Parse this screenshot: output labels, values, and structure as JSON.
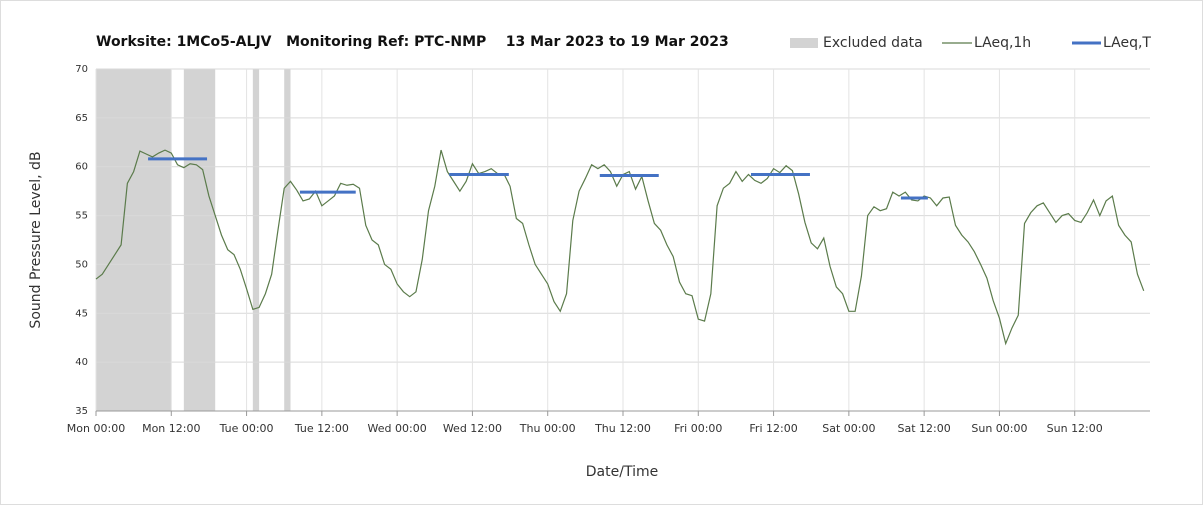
{
  "chart_data": {
    "type": "line",
    "title": "Worksite: 1MCo5-ALJV   Monitoring Ref: PTC-NMP    13 Mar 2023 to 19 Mar 2023",
    "x_label": "Date/Time",
    "y_label": "Sound Pressure Level, dB",
    "xlim": [
      0,
      168
    ],
    "xticks": [
      {
        "value": 0,
        "label": "Mon 00:00"
      },
      {
        "value": 12,
        "label": "Mon 12:00"
      },
      {
        "value": 24,
        "label": "Tue 00:00"
      },
      {
        "value": 36,
        "label": "Tue 12:00"
      },
      {
        "value": 48,
        "label": "Wed 00:00"
      },
      {
        "value": 60,
        "label": "Wed 12:00"
      },
      {
        "value": 72,
        "label": "Thu 00:00"
      },
      {
        "value": 84,
        "label": "Thu 12:00"
      },
      {
        "value": 96,
        "label": "Fri 00:00"
      },
      {
        "value": 108,
        "label": "Fri 12:00"
      },
      {
        "value": 120,
        "label": "Sat 00:00"
      },
      {
        "value": 132,
        "label": "Sat 12:00"
      },
      {
        "value": 144,
        "label": "Sun 00:00"
      },
      {
        "value": 156,
        "label": "Sun 12:00"
      }
    ],
    "ylim": [
      35,
      70
    ],
    "yticks": [
      35,
      40,
      45,
      50,
      55,
      60,
      65,
      70
    ],
    "grid": true,
    "excluded": {
      "name": "Excluded data",
      "color": "#d3d3d3",
      "start": [
        0,
        14,
        25,
        30
      ],
      "end": [
        12,
        19,
        26,
        31
      ]
    },
    "series": [
      {
        "name": "LAeq,1h",
        "color": "#5b7b4b",
        "x": [
          0,
          1,
          2,
          3,
          4,
          5,
          6,
          7,
          8,
          9,
          10,
          11,
          12,
          13,
          14,
          15,
          16,
          17,
          18,
          19,
          20,
          21,
          22,
          23,
          24,
          25,
          26,
          27,
          28,
          29,
          30,
          31,
          32,
          33,
          34,
          35,
          36,
          37,
          38,
          39,
          40,
          41,
          42,
          43,
          44,
          45,
          46,
          47,
          48,
          49,
          50,
          51,
          52,
          53,
          54,
          55,
          56,
          57,
          58,
          59,
          60,
          61,
          62,
          63,
          64,
          65,
          66,
          67,
          68,
          69,
          70,
          71,
          72,
          73,
          74,
          75,
          76,
          77,
          78,
          79,
          80,
          81,
          82,
          83,
          84,
          85,
          86,
          87,
          88,
          89,
          90,
          91,
          92,
          93,
          94,
          95,
          96,
          97,
          98,
          99,
          100,
          101,
          102,
          103,
          104,
          105,
          106,
          107,
          108,
          109,
          110,
          111,
          112,
          113,
          114,
          115,
          116,
          117,
          118,
          119,
          120,
          121,
          122,
          123,
          124,
          125,
          126,
          127,
          128,
          129,
          130,
          131,
          132,
          133,
          134,
          135,
          136,
          137,
          138,
          139,
          140,
          141,
          142,
          143,
          144,
          145,
          146,
          147,
          148,
          149,
          150,
          151,
          152,
          153,
          154,
          155,
          156,
          157,
          158,
          159,
          160,
          161,
          162,
          163,
          164,
          165,
          166,
          167
        ],
        "values": [
          48.5,
          49,
          50,
          51,
          52,
          58.3,
          59.5,
          61.6,
          61.3,
          61,
          61.4,
          61.7,
          61.4,
          60.2,
          59.9,
          60.3,
          60.2,
          59.7,
          57,
          55,
          53,
          51.5,
          51,
          49.5,
          47.5,
          45.4,
          45.6,
          47,
          49,
          53.5,
          57.8,
          58.5,
          57.6,
          56.5,
          56.7,
          57.5,
          56,
          56.5,
          57,
          58.3,
          58.1,
          58.2,
          57.8,
          54,
          52.5,
          52,
          50,
          49.5,
          48,
          47.2,
          46.7,
          47.2,
          50.5,
          55.5,
          58,
          61.7,
          59.5,
          58.5,
          57.5,
          58.5,
          60.3,
          59.3,
          59.5,
          59.8,
          59.3,
          59.3,
          58,
          54.7,
          54.2,
          52,
          50,
          49,
          48,
          46.2,
          45.2,
          47,
          54.5,
          57.5,
          58.8,
          60.2,
          59.8,
          60.2,
          59.5,
          58,
          59.2,
          59.5,
          57.7,
          59,
          56.5,
          54.2,
          53.5,
          52,
          50.8,
          48.2,
          47,
          46.8,
          44.4,
          44.2,
          47,
          56,
          57.8,
          58.3,
          59.5,
          58.5,
          59.2,
          58.6,
          58.3,
          58.8,
          59.8,
          59.4,
          60.1,
          59.6,
          57.2,
          54.3,
          52.2,
          51.6,
          52.7,
          49.8,
          47.7,
          47,
          45.2,
          45.2,
          48.8,
          55,
          55.9,
          55.5,
          55.7,
          57.4,
          57,
          57.4,
          56.6,
          56.5,
          57,
          56.8,
          56,
          56.8,
          56.9,
          54,
          53,
          52.3,
          51.3,
          50,
          48.6,
          46.3,
          44.5,
          41.9,
          43.5,
          44.8,
          54.2,
          55.3,
          56,
          56.3,
          55.3,
          54.3,
          55,
          55.2,
          54.5,
          54.3,
          55.3,
          56.6,
          55,
          56.5,
          57,
          54,
          53,
          52.3,
          49,
          47.3
        ]
      }
    ],
    "levels": {
      "name": "LAeq,T",
      "color": "#4472c4",
      "x_start": [
        8.3,
        32.5,
        56.3,
        80.3,
        104.4,
        128.3
      ],
      "x_end": [
        17.7,
        41.4,
        65.8,
        89.7,
        113.8,
        132.6
      ],
      "values": [
        60.8,
        57.4,
        59.2,
        59.1,
        59.2,
        56.8
      ]
    }
  }
}
